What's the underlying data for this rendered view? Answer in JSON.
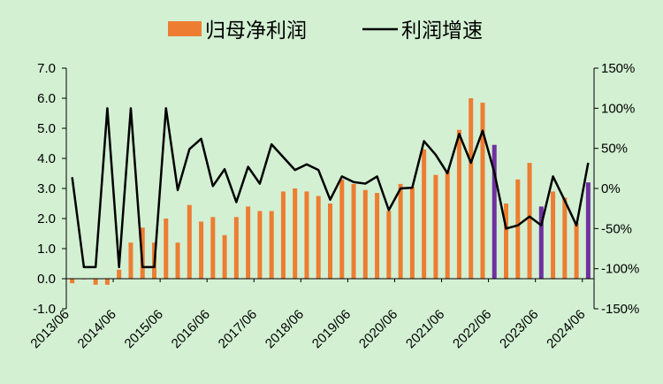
{
  "chart_data": {
    "type": "bar+line",
    "legend": {
      "placement": "top-center",
      "items": [
        {
          "label": "归母净利润",
          "kind": "bar",
          "color": "#ed7d31"
        },
        {
          "label": "利润增速",
          "kind": "line",
          "color": "#000000"
        }
      ]
    },
    "x_tick_labels": [
      "2013/06",
      "2014/06",
      "2015/06",
      "2016/06",
      "2017/06",
      "2018/06",
      "2019/06",
      "2020/06",
      "2021/06",
      "2022/06",
      "2023/06",
      "2024/06"
    ],
    "y_left": {
      "min": -1.0,
      "max": 7.0,
      "ticks": [
        "-1.0",
        "0.0",
        "1.0",
        "2.0",
        "3.0",
        "4.0",
        "5.0",
        "6.0",
        "7.0"
      ]
    },
    "y_right": {
      "min": -150,
      "max": 150,
      "ticks": [
        "-150%",
        "-100%",
        "-50%",
        "0%",
        "50%",
        "100%",
        "150%"
      ]
    },
    "colors": {
      "bar": "#ed7d31",
      "bar_highlight": "#7030a0",
      "line": "#000000",
      "background": "#d3f0d3"
    },
    "series": [
      {
        "name": "归母净利润",
        "kind": "bar",
        "axis": "left",
        "values": [
          -0.15,
          0.0,
          -0.2,
          -0.2,
          0.3,
          1.2,
          1.7,
          1.2,
          2.0,
          1.2,
          2.45,
          1.9,
          2.05,
          1.45,
          2.05,
          2.4,
          2.25,
          2.25,
          2.9,
          3.0,
          2.9,
          2.75,
          2.5,
          3.3,
          3.15,
          2.95,
          2.85,
          2.25,
          3.15,
          3.05,
          4.3,
          3.45,
          3.6,
          4.95,
          6.0,
          5.85,
          4.45,
          2.5,
          3.3,
          3.85,
          2.4,
          2.9,
          2.7,
          1.85,
          3.2
        ],
        "highlight_indices": [
          36,
          40,
          44
        ]
      },
      {
        "name": "利润增速",
        "kind": "line",
        "axis": "right",
        "values": [
          14,
          -98,
          -98,
          100,
          -98,
          100,
          -98,
          -98,
          100,
          -2,
          49,
          62,
          3,
          24,
          -17,
          27,
          6,
          55,
          39,
          23,
          30,
          23,
          -14,
          15,
          8,
          6,
          15,
          -27,
          0,
          1,
          59,
          42,
          19,
          68,
          32,
          72,
          20,
          -50,
          -46,
          -35,
          -46,
          15,
          -15,
          -46,
          32
        ]
      }
    ]
  }
}
